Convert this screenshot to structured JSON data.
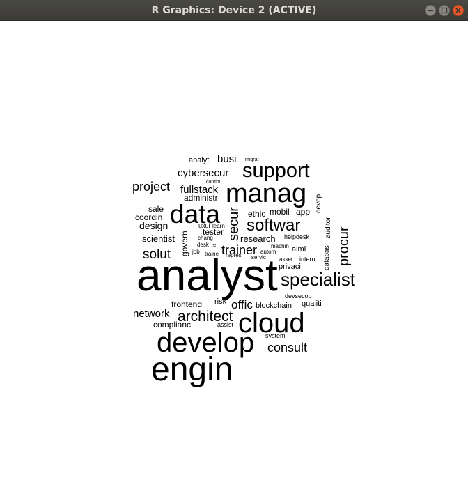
{
  "window": {
    "title": "R Graphics: Device 2 (ACTIVE)",
    "minimize_icon": "minimize-icon",
    "maximize_icon": "maximize-icon",
    "close_icon": "close-icon",
    "close_color": "#e9572a"
  },
  "plot": {
    "type": "wordcloud",
    "text_color": "#000000",
    "background": "#ffffff",
    "words": [
      {
        "text": "analyst"
      },
      {
        "text": "engin"
      },
      {
        "text": "develop"
      },
      {
        "text": "cloud"
      },
      {
        "text": "manag"
      },
      {
        "text": "data"
      },
      {
        "text": "support"
      },
      {
        "text": "specialist"
      },
      {
        "text": "softwar"
      },
      {
        "text": "architect"
      },
      {
        "text": "procur"
      },
      {
        "text": "secur"
      },
      {
        "text": "trainer"
      },
      {
        "text": "consult"
      },
      {
        "text": "solut"
      },
      {
        "text": "project"
      },
      {
        "text": "network"
      },
      {
        "text": "offic"
      },
      {
        "text": "cybersecur"
      },
      {
        "text": "fullstack"
      },
      {
        "text": "busi"
      },
      {
        "text": "design"
      },
      {
        "text": "research"
      },
      {
        "text": "scientist"
      },
      {
        "text": "govern"
      },
      {
        "text": "administr"
      },
      {
        "text": "sale"
      },
      {
        "text": "coordin"
      },
      {
        "text": "ethic"
      },
      {
        "text": "mobil"
      },
      {
        "text": "app"
      },
      {
        "text": "tester"
      },
      {
        "text": "frontend"
      },
      {
        "text": "complianc"
      },
      {
        "text": "blockchain"
      },
      {
        "text": "qualiti"
      },
      {
        "text": "privaci"
      },
      {
        "text": "aiml"
      },
      {
        "text": "risk"
      },
      {
        "text": "devop"
      },
      {
        "text": "auditor"
      },
      {
        "text": "databas"
      },
      {
        "text": "analyt"
      },
      {
        "text": "uxui"
      },
      {
        "text": "learn"
      },
      {
        "text": "helpdesk"
      },
      {
        "text": "assist"
      },
      {
        "text": "system"
      },
      {
        "text": "devsecop"
      },
      {
        "text": "intern"
      },
      {
        "text": "machin"
      },
      {
        "text": "autom"
      },
      {
        "text": "asset"
      },
      {
        "text": "servic"
      },
      {
        "text": "repres"
      },
      {
        "text": "traine"
      },
      {
        "text": "job"
      },
      {
        "text": "desk"
      },
      {
        "text": "chang"
      },
      {
        "text": "continu"
      },
      {
        "text": "migrat"
      },
      {
        "text": "it"
      }
    ]
  }
}
